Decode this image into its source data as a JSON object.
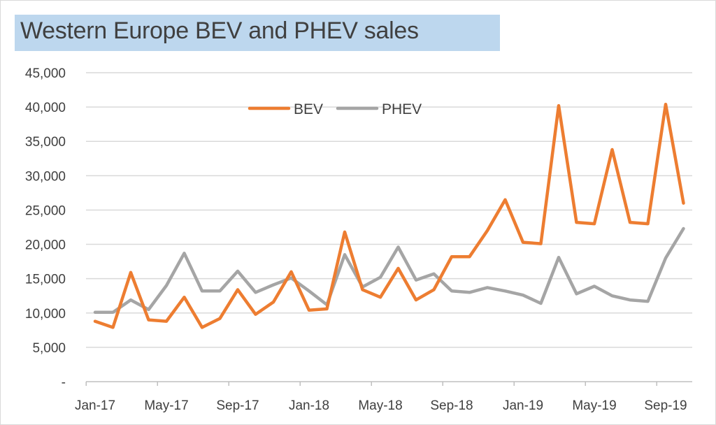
{
  "chart_data": {
    "type": "line",
    "title": "Western Europe BEV and PHEV sales",
    "ylim": [
      0,
      45000
    ],
    "y_ticks": [
      0,
      5000,
      10000,
      15000,
      20000,
      25000,
      30000,
      35000,
      40000,
      45000
    ],
    "y_tick_labels": [
      "-",
      "5,000",
      "10,000",
      "15,000",
      "20,000",
      "25,000",
      "30,000",
      "35,000",
      "40,000",
      "45,000"
    ],
    "x": [
      "Jan-17",
      "Feb-17",
      "Mar-17",
      "Apr-17",
      "May-17",
      "Jun-17",
      "Jul-17",
      "Aug-17",
      "Sep-17",
      "Oct-17",
      "Nov-17",
      "Dec-17",
      "Jan-18",
      "Feb-18",
      "Mar-18",
      "Apr-18",
      "May-18",
      "Jun-18",
      "Jul-18",
      "Aug-18",
      "Sep-18",
      "Oct-18",
      "Nov-18",
      "Dec-18",
      "Jan-19",
      "Feb-19",
      "Mar-19",
      "Apr-19",
      "May-19",
      "Jun-19",
      "Jul-19",
      "Aug-19",
      "Sep-19",
      "Oct-19"
    ],
    "x_tick_labels": [
      "Jan-17",
      "May-17",
      "Sep-17",
      "Jan-18",
      "May-18",
      "Sep-18",
      "Jan-19",
      "May-19",
      "Sep-19"
    ],
    "grid": true,
    "legend_position": "top-center",
    "series": [
      {
        "name": "BEV",
        "color": "#ed7d31",
        "values": [
          8800,
          7900,
          15900,
          9000,
          8800,
          12300,
          7900,
          9200,
          13400,
          9800,
          11600,
          16000,
          10400,
          10600,
          21800,
          13400,
          12300,
          16500,
          11900,
          13400,
          18200,
          18200,
          22000,
          26500,
          20300,
          20100,
          40200,
          23200,
          23000,
          33800,
          23200,
          23000,
          40400,
          26000
        ]
      },
      {
        "name": "PHEV",
        "color": "#a5a5a5",
        "values": [
          10100,
          10100,
          11900,
          10500,
          14000,
          18700,
          13200,
          13200,
          16100,
          13000,
          14100,
          15100,
          13200,
          11200,
          18500,
          13800,
          15200,
          19600,
          14800,
          15700,
          13200,
          13000,
          13700,
          13200,
          12600,
          11400,
          18100,
          12800,
          13900,
          12500,
          11900,
          11700,
          18000,
          22300
        ]
      }
    ]
  }
}
